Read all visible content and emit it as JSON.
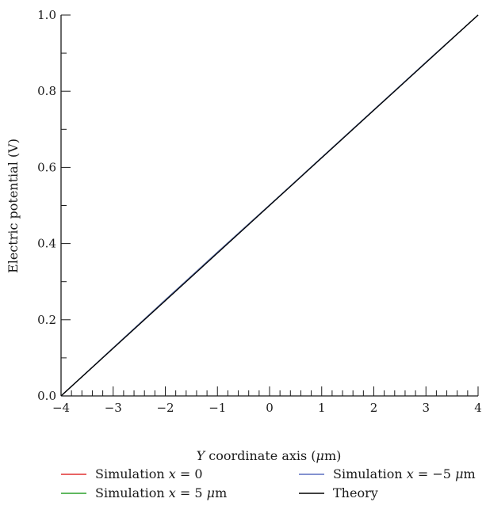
{
  "chart_data": {
    "type": "line",
    "xlabel": {
      "italic": "Y",
      "pre_unit": " coordinate axis (",
      "unit_italic": "μ",
      "post_unit": "m)"
    },
    "ylabel": "Electric potential (V)",
    "xlim": [
      -4,
      4
    ],
    "ylim": [
      0,
      1
    ],
    "x_ticks": [
      "−4",
      "−3",
      "−2",
      "−1",
      "0",
      "1",
      "2",
      "3",
      "4"
    ],
    "y_ticks": [
      "0.0",
      "0.2",
      "0.4",
      "0.6",
      "0.8",
      "1.0"
    ],
    "series": [
      {
        "name": "Simulation x = 0",
        "legend_parts": [
          "Simulation ",
          "x",
          " = 0",
          ""
        ],
        "color": "#e03030",
        "x": [
          -4,
          -3,
          -2,
          -1,
          0,
          1,
          2,
          3,
          4
        ],
        "y": [
          0.0,
          0.126,
          0.252,
          0.377,
          0.501,
          0.626,
          0.751,
          0.876,
          1.0
        ]
      },
      {
        "name": "Simulation x = 5 μm",
        "legend_parts": [
          "Simulation ",
          "x",
          " = 5 ",
          "μ",
          "m"
        ],
        "color": "#2ca02c",
        "x": [
          -4,
          -3,
          -2,
          -1,
          0,
          1,
          2,
          3,
          4
        ],
        "y": [
          0.0,
          0.126,
          0.252,
          0.377,
          0.501,
          0.626,
          0.751,
          0.876,
          1.0
        ]
      },
      {
        "name": "Simulation x = −5 μm",
        "legend_parts": [
          "Simulation ",
          "x",
          " = −5 ",
          "μ",
          "m"
        ],
        "color": "#5a6fc0",
        "x": [
          -4,
          -3,
          -2,
          -1,
          0,
          1,
          2,
          3,
          4
        ],
        "y": [
          0.0,
          0.126,
          0.252,
          0.377,
          0.501,
          0.626,
          0.751,
          0.876,
          1.0
        ]
      },
      {
        "name": "Theory",
        "legend_parts": [
          "Theory"
        ],
        "color": "#000000",
        "x": [
          -4,
          4
        ],
        "y": [
          0.0,
          1.0
        ]
      }
    ],
    "legend_position": "bottom",
    "grid": false
  }
}
